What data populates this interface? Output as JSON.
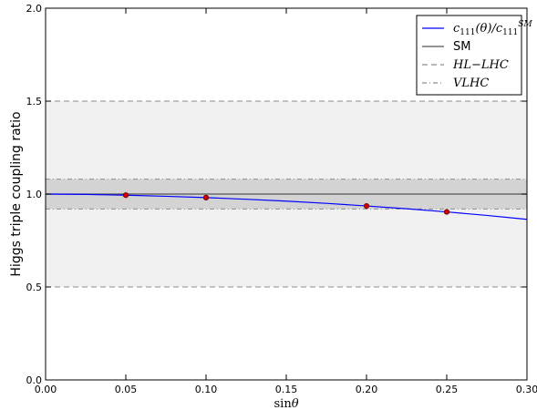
{
  "chart_data": {
    "type": "line",
    "xlabel": "sinθ",
    "ylabel": "Higgs triple coupling ratio",
    "xlim": [
      0.0,
      0.3
    ],
    "ylim": [
      0.0,
      2.0
    ],
    "x_ticks": [
      0.0,
      0.05,
      0.1,
      0.15,
      0.2,
      0.25,
      0.3
    ],
    "x_tick_labels": [
      "0.00",
      "0.05",
      "0.10",
      "0.15",
      "0.20",
      "0.25",
      "0.30"
    ],
    "y_ticks": [
      0.0,
      0.5,
      1.0,
      1.5,
      2.0
    ],
    "y_tick_labels": [
      "0.0",
      "0.5",
      "1.0",
      "1.5",
      "2.0"
    ],
    "grid": false,
    "legend_position": "top-right",
    "bands": [
      {
        "name": "HL−LHC",
        "range": [
          0.5,
          1.5
        ],
        "fill": "#f0f0f0",
        "line_style": "dashed",
        "line_color": "#8c8c8c"
      },
      {
        "name": "VLHC",
        "range": [
          0.92,
          1.08
        ],
        "fill": "#d3d3d3",
        "line_style": "dashdot",
        "line_color": "#8c8c8c"
      }
    ],
    "reference_line": {
      "name": "SM",
      "y": 1.0,
      "color": "#555555"
    },
    "series": [
      {
        "name": "c111(θ)/c111^SM",
        "color": "#0000ff",
        "x": [
          0.0,
          0.025,
          0.05,
          0.075,
          0.1,
          0.125,
          0.15,
          0.175,
          0.2,
          0.225,
          0.25,
          0.275,
          0.3
        ],
        "values": [
          1.0,
          0.998,
          0.994,
          0.988,
          0.981,
          0.972,
          0.962,
          0.95,
          0.936,
          0.921,
          0.904,
          0.885,
          0.864
        ]
      }
    ],
    "markers": {
      "color": "#cc0000",
      "x": [
        0.05,
        0.1,
        0.2,
        0.25
      ],
      "values": [
        0.994,
        0.981,
        0.936,
        0.904
      ]
    },
    "legend": [
      {
        "label": "c111(θ)/c111SM",
        "style": "solid",
        "color": "#0000ff"
      },
      {
        "label": "SM",
        "style": "solid",
        "color": "#555555"
      },
      {
        "label": "HL−LHC",
        "style": "dashed",
        "color": "#8c8c8c"
      },
      {
        "label": "VLHC",
        "style": "dashdot",
        "color": "#8c8c8c"
      }
    ]
  }
}
